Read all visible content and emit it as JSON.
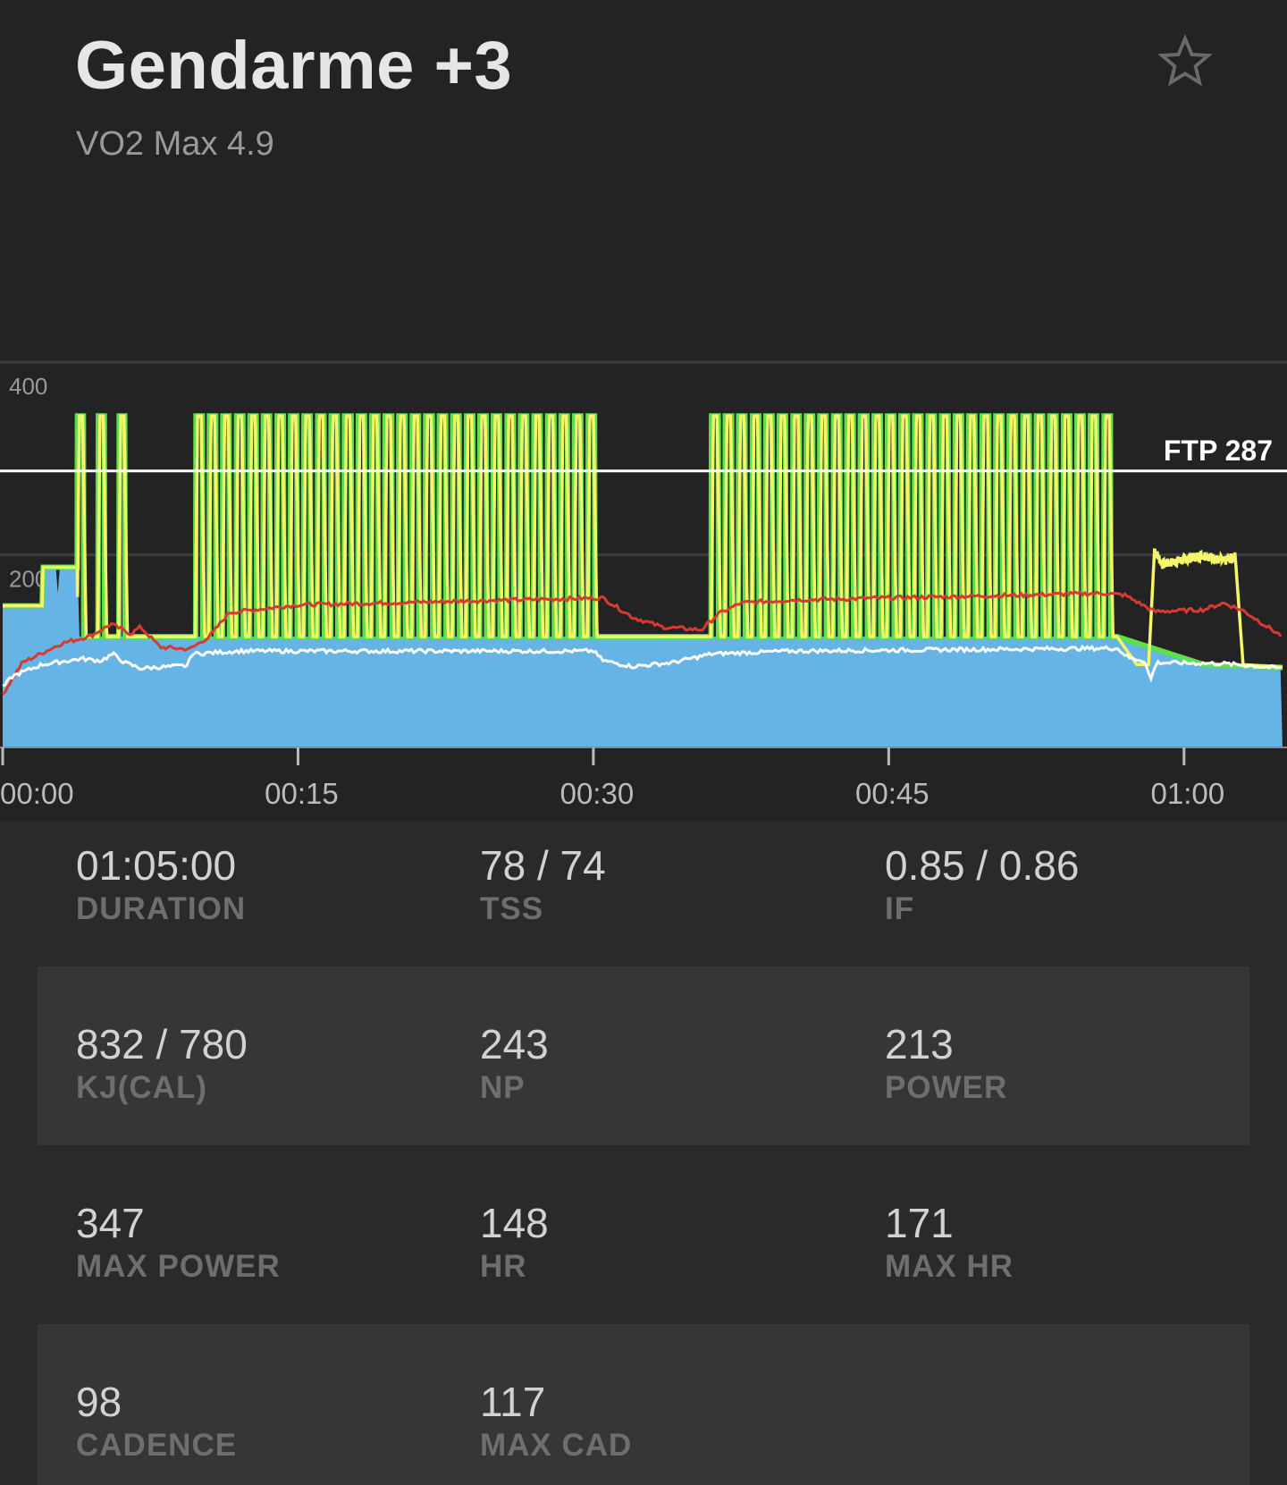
{
  "header": {
    "title": "Gendarme +3",
    "subtitle": "VO2 Max 4.9",
    "favorite_icon": "star-outline-icon"
  },
  "chart_data": {
    "type": "line",
    "title": "",
    "x_unit": "minutes",
    "xlim": [
      0,
      65
    ],
    "ylim": [
      0,
      400
    ],
    "y_ticks": [
      {
        "value": 400,
        "label": "400"
      },
      {
        "value": 200,
        "label": "200"
      }
    ],
    "x_ticks": [
      {
        "value": 0,
        "label": "00:00"
      },
      {
        "value": 15,
        "label": "00:15"
      },
      {
        "value": 30,
        "label": "00:30"
      },
      {
        "value": 45,
        "label": "00:45"
      },
      {
        "value": 60,
        "label": "01:00"
      }
    ],
    "ftp": {
      "value": 287,
      "label": "FTP 287"
    },
    "colors": {
      "target": "#5de04a",
      "power": "#f5f56a",
      "area": "#66b3e6",
      "hr": "#d63a30",
      "cadence": "#ffffff",
      "ftp": "#ffffff",
      "grid": "#3c3c3c"
    },
    "interval_blocks": [
      {
        "start": 3.8,
        "count": 3,
        "period": 1.05,
        "on": 344,
        "off": 115
      },
      {
        "start": 9.8,
        "count": 30,
        "period": 0.687,
        "on": 344,
        "off": 115
      },
      {
        "start": 36.0,
        "count": 30,
        "period": 0.687,
        "on": 344,
        "off": 115
      }
    ],
    "series": [
      {
        "name": "target_base",
        "points": [
          [
            0,
            147
          ],
          [
            2,
            147
          ],
          [
            2.05,
            187
          ],
          [
            3.8,
            187
          ],
          [
            3.8,
            115
          ],
          [
            56.6,
            115
          ],
          [
            61,
            86
          ],
          [
            65,
            83
          ]
        ]
      },
      {
        "name": "power_cooldown",
        "points": [
          [
            56.6,
            115
          ],
          [
            57.6,
            86
          ],
          [
            58.2,
            86
          ],
          [
            58.5,
            205
          ],
          [
            58.9,
            190
          ],
          [
            60,
            195
          ],
          [
            61,
            200
          ],
          [
            62,
            193
          ],
          [
            62.6,
            198
          ],
          [
            63.0,
            86
          ],
          [
            65,
            83
          ]
        ]
      },
      {
        "name": "area",
        "points": [
          [
            0,
            147
          ],
          [
            2,
            147
          ],
          [
            2.05,
            187
          ],
          [
            2.7,
            187
          ],
          [
            2.8,
            160
          ],
          [
            2.9,
            187
          ],
          [
            3.8,
            187
          ],
          [
            3.9,
            115
          ],
          [
            56.6,
            115
          ],
          [
            61,
            86
          ],
          [
            65,
            83
          ]
        ]
      },
      {
        "name": "hr",
        "points": [
          [
            0,
            55
          ],
          [
            1,
            88
          ],
          [
            3,
            108
          ],
          [
            4.5,
            116
          ],
          [
            5.5,
            128
          ],
          [
            6.5,
            118
          ],
          [
            7,
            125
          ],
          [
            8,
            104
          ],
          [
            9.5,
            102
          ],
          [
            10.5,
            115
          ],
          [
            11.5,
            140
          ],
          [
            15,
            148
          ],
          [
            30,
            155
          ],
          [
            30.5,
            155
          ],
          [
            32,
            135
          ],
          [
            33.5,
            125
          ],
          [
            35.5,
            122
          ],
          [
            36.3,
            138
          ],
          [
            37.5,
            150
          ],
          [
            40,
            153
          ],
          [
            56,
            160
          ],
          [
            57,
            158
          ],
          [
            58.5,
            141
          ],
          [
            61,
            143
          ],
          [
            62,
            150
          ],
          [
            63,
            142
          ],
          [
            65,
            115
          ]
        ]
      },
      {
        "name": "cadence",
        "points": [
          [
            0,
            62
          ],
          [
            0.5,
            74
          ],
          [
            2,
            86
          ],
          [
            4,
            92
          ],
          [
            5,
            90
          ],
          [
            5.6,
            97
          ],
          [
            6.2,
            88
          ],
          [
            7,
            82
          ],
          [
            9.4,
            85
          ],
          [
            9.6,
            97
          ],
          [
            12,
            100
          ],
          [
            30,
            100
          ],
          [
            30.5,
            90
          ],
          [
            32,
            84
          ],
          [
            34,
            88
          ],
          [
            36,
            97
          ],
          [
            40,
            100
          ],
          [
            56.6,
            103
          ],
          [
            57.2,
            93
          ],
          [
            58,
            90
          ],
          [
            58.3,
            70
          ],
          [
            58.6,
            88
          ],
          [
            62,
            87
          ],
          [
            65,
            82
          ]
        ]
      }
    ]
  },
  "stats": [
    [
      {
        "value": "01:05:00",
        "label": "DURATION"
      },
      {
        "value": "78 / 74",
        "label": "TSS"
      },
      {
        "value": "0.85 / 0.86",
        "label": "IF"
      }
    ],
    [
      {
        "value": "832 / 780",
        "label": "KJ(CAL)"
      },
      {
        "value": "243",
        "label": "NP"
      },
      {
        "value": "213",
        "label": "POWER"
      }
    ],
    [
      {
        "value": "347",
        "label": "MAX POWER"
      },
      {
        "value": "148",
        "label": "HR"
      },
      {
        "value": "171",
        "label": "MAX HR"
      }
    ],
    [
      {
        "value": "98",
        "label": "CADENCE"
      },
      {
        "value": "117",
        "label": "MAX CAD"
      }
    ]
  ]
}
